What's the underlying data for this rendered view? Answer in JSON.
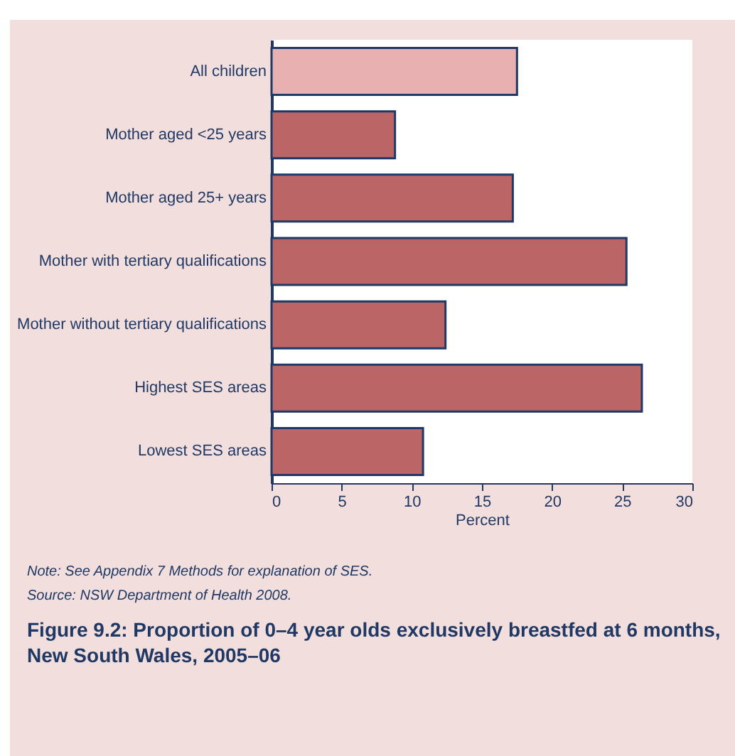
{
  "chart_data": {
    "type": "bar",
    "orientation": "horizontal",
    "title": "Figure 9.2: Proportion of 0–4 year olds exclusively breastfed at 6 months, New South Wales, 2005–06",
    "xlabel": "Percent",
    "categories": [
      "All children",
      "Mother aged <25 years",
      "Mother aged 25+ years",
      "Mother with tertiary qualifications",
      "Mother without tertiary qualifications",
      "Highest SES areas",
      "Lowest SES areas"
    ],
    "values": [
      17.5,
      8.8,
      17.2,
      25.3,
      12.4,
      26.4,
      10.8
    ],
    "colors": [
      "#e8b0b0",
      "#bc6567",
      "#bc6567",
      "#bc6567",
      "#bc6567",
      "#bc6567",
      "#bc6567"
    ],
    "xlim": [
      0,
      30
    ],
    "xticks": [
      0,
      5,
      10,
      15,
      20,
      25,
      30
    ],
    "grid": false,
    "annotations": [
      "Note: See Appendix 7 Methods for explanation of SES.",
      "Source: NSW Department of Health 2008."
    ]
  }
}
